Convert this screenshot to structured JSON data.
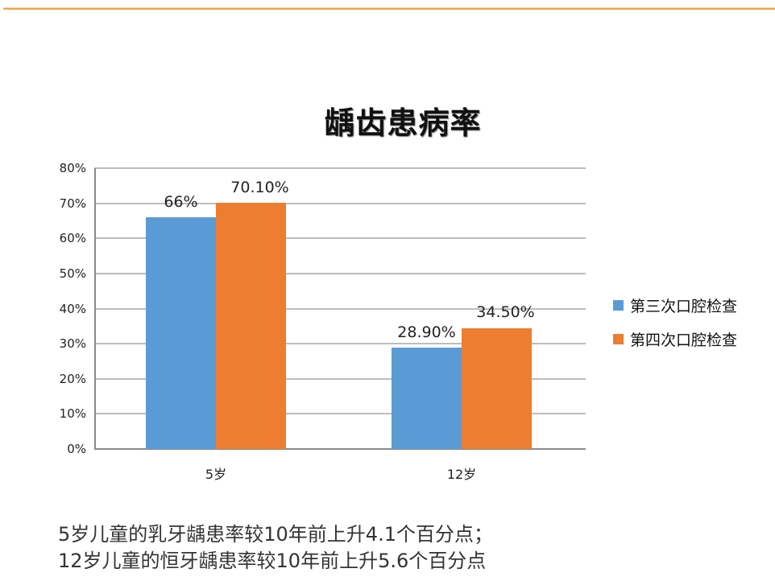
{
  "slide": {
    "caption_lines": [
      "5岁儿童的乳牙龋患率较10年前上升4.1个百分点；",
      "12岁儿童的恒牙龋患率较10年前上升5.6个百分点"
    ]
  },
  "colors": {
    "series1": "#5b9bd5",
    "series2": "#ed7d31",
    "top_rule": "#e9a54a"
  },
  "chart_data": {
    "type": "bar",
    "title": "龋齿患病率",
    "xlabel": "",
    "ylabel": "",
    "categories": [
      "5岁",
      "12岁"
    ],
    "series": [
      {
        "name": "第三次口腔检查",
        "values": [
          66,
          28.9
        ],
        "labels": [
          "66%",
          "28.90%"
        ],
        "color": "#5b9bd5"
      },
      {
        "name": "第四次口腔检查",
        "values": [
          70.1,
          34.5
        ],
        "labels": [
          "70.10%",
          "34.50%"
        ],
        "color": "#ed7d31"
      }
    ],
    "ylim": [
      0,
      80
    ],
    "yticks": [
      "0%",
      "10%",
      "20%",
      "30%",
      "40%",
      "50%",
      "60%",
      "70%",
      "80%"
    ],
    "grid": true,
    "legend_position": "right"
  }
}
